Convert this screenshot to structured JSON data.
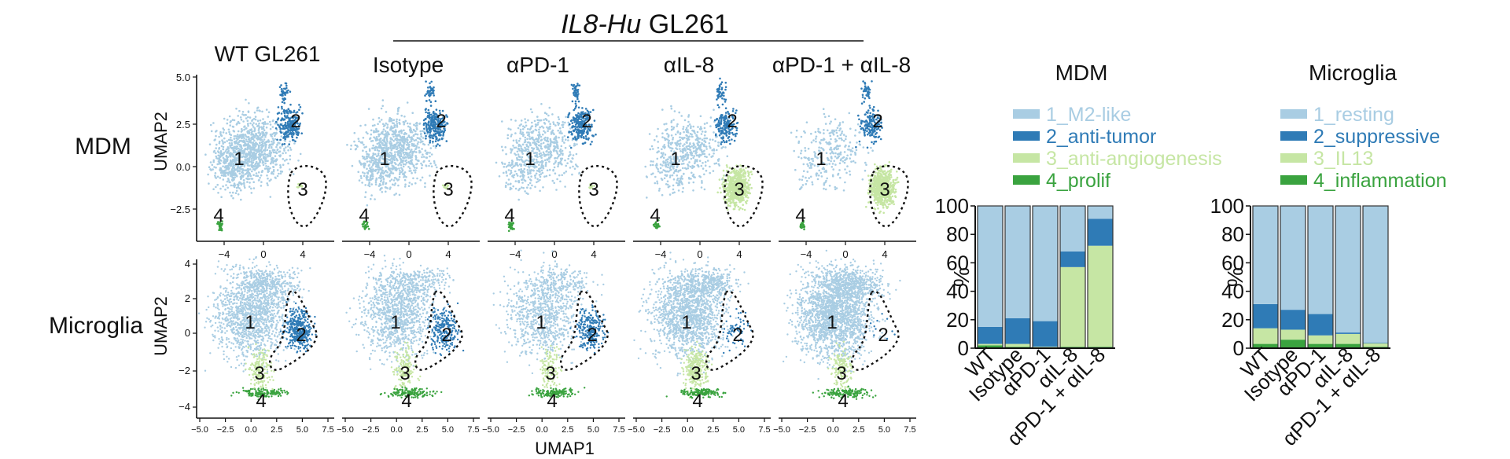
{
  "colors": {
    "c1": "#a9cde3",
    "c2": "#2f7bb6",
    "c3": "#c6e6a4",
    "c4": "#3aa33f",
    "bar_edge": "#333333",
    "axis": "#111111",
    "gate": "#111111"
  },
  "header": {
    "group_title_italic": "IL8-Hu",
    "group_title_rest": " GL261",
    "conditions": [
      "WT GL261",
      "Isotype",
      "αPD-1",
      "αIL-8",
      "αPD-1 + αIL-8"
    ]
  },
  "umap": {
    "row_labels": [
      "MDM",
      "Microglia"
    ],
    "ylabel": "UMAP2",
    "xlabel": "UMAP1",
    "mdm_xticks": [
      "−4",
      "0",
      "4"
    ],
    "mdm_yticks": [
      "5.0",
      "2.5",
      "0.0",
      "−2.5"
    ],
    "mg_xticks": [
      "−5.0",
      "−2.5",
      "0.0",
      "2.5",
      "5.0",
      "7.5"
    ],
    "mg_yticks": [
      "4",
      "2",
      "0",
      "−2",
      "−4"
    ],
    "cluster_labels": [
      "1",
      "2",
      "3",
      "4"
    ]
  },
  "chart_data": [
    {
      "type": "bar",
      "stacked": true,
      "title": "MDM",
      "ylabel": "%",
      "ylim": [
        0,
        100
      ],
      "yticks": [
        "0",
        "20",
        "40",
        "60",
        "80",
        "100"
      ],
      "categories": [
        "WT",
        "Isotype",
        "αPD-1",
        "αIL-8",
        "αPD-1 + αIL-8"
      ],
      "legend_position": "top",
      "series": [
        {
          "name": "1_M2-like",
          "values": [
            85,
            79,
            81,
            32,
            9
          ]
        },
        {
          "name": "2_anti-tumor",
          "values": [
            12,
            18,
            18,
            11,
            19
          ]
        },
        {
          "name": "3_anti-angiogenesis",
          "values": [
            1,
            2,
            0.5,
            56,
            71
          ]
        },
        {
          "name": "4_prolif",
          "values": [
            2,
            1,
            0.5,
            1,
            1
          ]
        }
      ]
    },
    {
      "type": "bar",
      "stacked": true,
      "title": "Microglia",
      "ylabel": "%",
      "ylim": [
        0,
        100
      ],
      "yticks": [
        "0",
        "20",
        "40",
        "60",
        "80",
        "100"
      ],
      "categories": [
        "WT",
        "Isotype",
        "αPD-1",
        "αIL-8",
        "αPD-1 + αIL-8"
      ],
      "legend_position": "top",
      "series": [
        {
          "name": "1_resting",
          "values": [
            69,
            73,
            76,
            89,
            96
          ]
        },
        {
          "name": "2_suppressive",
          "values": [
            17,
            14,
            15,
            1,
            0.5
          ]
        },
        {
          "name": "3_IL13",
          "values": [
            11,
            7,
            6,
            7,
            2.5
          ]
        },
        {
          "name": "4_inflammation",
          "values": [
            3,
            6,
            3,
            3,
            1
          ]
        }
      ]
    }
  ]
}
